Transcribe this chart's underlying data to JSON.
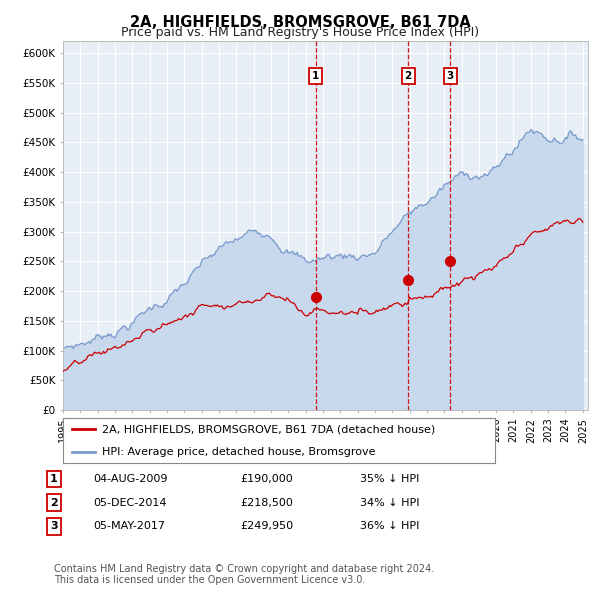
{
  "title": "2A, HIGHFIELDS, BROMSGROVE, B61 7DA",
  "subtitle": "Price paid vs. HM Land Registry's House Price Index (HPI)",
  "ylim": [
    0,
    620000
  ],
  "yticks": [
    0,
    50000,
    100000,
    150000,
    200000,
    250000,
    300000,
    350000,
    400000,
    450000,
    500000,
    550000,
    600000
  ],
  "ytick_labels": [
    "£0",
    "£50K",
    "£100K",
    "£150K",
    "£200K",
    "£250K",
    "£300K",
    "£350K",
    "£400K",
    "£450K",
    "£500K",
    "£550K",
    "£600K"
  ],
  "background_color": "#ffffff",
  "plot_bg_color": "#e8eef5",
  "grid_color": "#ffffff",
  "red_line_color": "#cc0000",
  "blue_line_color": "#7799cc",
  "blue_fill_color": "#c8d8ed",
  "vline_color": "#cc0000",
  "marker_color": "#cc0000",
  "ann_dates": [
    2009.58,
    2014.92,
    2017.34
  ],
  "ann_labels": [
    "1",
    "2",
    "3"
  ],
  "ann_prices": [
    190000,
    218500,
    249950
  ],
  "legend_entries": [
    "2A, HIGHFIELDS, BROMSGROVE, B61 7DA (detached house)",
    "HPI: Average price, detached house, Bromsgrove"
  ],
  "table_rows": [
    {
      "num": "1",
      "date": "04-AUG-2009",
      "price": "£190,000",
      "hpi": "35% ↓ HPI"
    },
    {
      "num": "2",
      "date": "05-DEC-2014",
      "price": "£218,500",
      "hpi": "34% ↓ HPI"
    },
    {
      "num": "3",
      "date": "05-MAY-2017",
      "price": "£249,950",
      "hpi": "36% ↓ HPI"
    }
  ],
  "footnote": "Contains HM Land Registry data © Crown copyright and database right 2024.\nThis data is licensed under the Open Government Licence v3.0.",
  "title_fontsize": 10.5,
  "subtitle_fontsize": 9,
  "tick_fontsize": 7.5,
  "legend_fontsize": 8,
  "table_fontsize": 8,
  "footnote_fontsize": 7
}
